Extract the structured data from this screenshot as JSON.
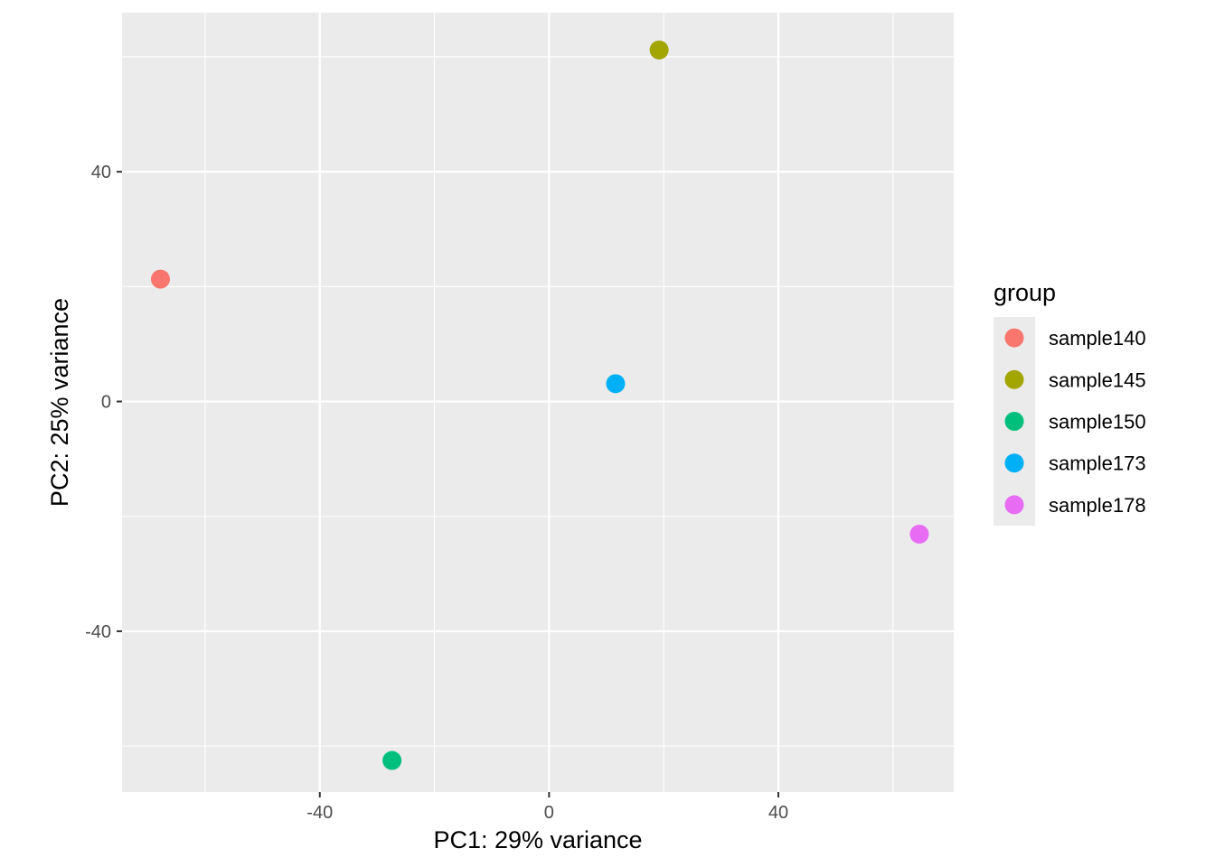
{
  "chart_data": {
    "type": "scatter",
    "title": "",
    "xlabel": "PC1: 29% variance",
    "ylabel": "PC2: 25% variance",
    "xlim": [
      -74.5,
      70.6
    ],
    "ylim": [
      -68.0,
      67.7
    ],
    "x_ticks": [
      -40,
      0,
      40
    ],
    "y_ticks": [
      -40,
      0,
      40
    ],
    "x_tick_labels": [
      "-40",
      "0",
      "40"
    ],
    "y_tick_labels": [
      "-40",
      "0",
      "40"
    ],
    "grid": true,
    "legend": {
      "title": "group",
      "position": "right"
    },
    "series": [
      {
        "name": "sample140",
        "color": "#F8766D",
        "x": [
          -67.8
        ],
        "y": [
          21.3
        ]
      },
      {
        "name": "sample145",
        "color": "#A3A500",
        "x": [
          19.2
        ],
        "y": [
          61.2
        ]
      },
      {
        "name": "sample150",
        "color": "#00BF7D",
        "x": [
          -27.4
        ],
        "y": [
          -62.5
        ]
      },
      {
        "name": "sample173",
        "color": "#00B0F6",
        "x": [
          11.6
        ],
        "y": [
          3.1
        ]
      },
      {
        "name": "sample178",
        "color": "#E76BF3",
        "x": [
          64.6
        ],
        "y": [
          -23.1
        ]
      }
    ]
  },
  "colors": {
    "panel_background": "#EBEBEB",
    "grid_major": "#FFFFFF",
    "legend_key_background": "#EBEBEB"
  }
}
